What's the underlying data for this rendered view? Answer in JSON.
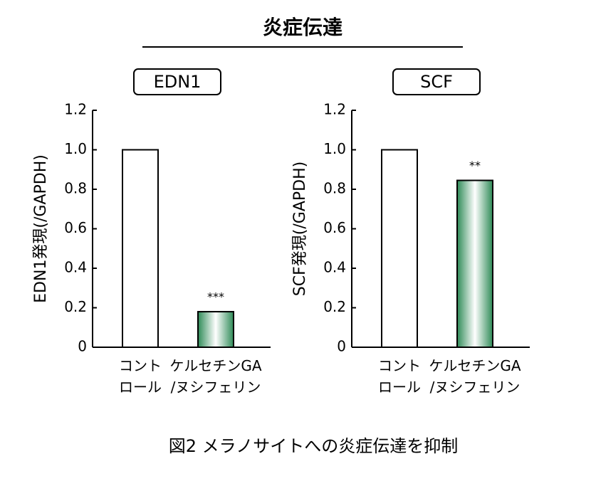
{
  "title": "炎症伝達",
  "caption": "図2 メラノサイトへの炎症伝達を抑制",
  "chart_data": [
    {
      "type": "bar",
      "title": "EDN1",
      "ylabel": "EDN1発現(/GAPDH)",
      "categories": [
        "コント\nロール",
        "ケルセチンGA\n/ヌシフェリン"
      ],
      "values": [
        1,
        0.18
      ],
      "significance": [
        null,
        "***"
      ],
      "colors": [
        "#ffffff",
        "#2e8b57"
      ],
      "ylim": [
        0,
        1.2
      ],
      "yticks": [
        0,
        0.2,
        0.4,
        0.6,
        0.8,
        {
          "value": 1,
          "label": "1.0"
        },
        1.2
      ]
    },
    {
      "type": "bar",
      "title": "SCF",
      "ylabel": "SCF発現(/GAPDH)",
      "categories": [
        "コント\nロール",
        "ケルセチンGA\n/ヌシフェリン"
      ],
      "values": [
        1,
        0.845
      ],
      "significance": [
        null,
        "**"
      ],
      "colors": [
        "#ffffff",
        "#2e8b57"
      ],
      "ylim": [
        0,
        1.2
      ],
      "yticks": [
        0,
        0.2,
        0.4,
        0.6,
        0.8,
        {
          "value": 1,
          "label": "1.0"
        },
        1.2
      ]
    }
  ]
}
